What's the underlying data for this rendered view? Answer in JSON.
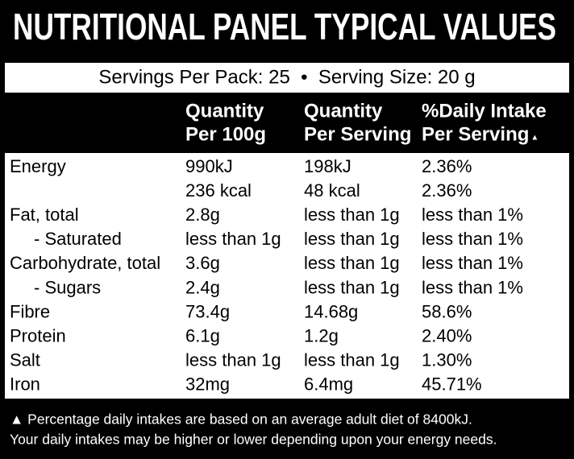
{
  "header": {
    "title": "NUTRITIONAL PANEL TYPICAL VALUES",
    "servings": "Servings Per Pack: 25  •  Serving Size: 20 g"
  },
  "table": {
    "columns": [
      [
        "Quantity",
        "Per 100g"
      ],
      [
        "Quantity",
        "Per Serving"
      ],
      [
        "%Daily Intake",
        "Per Serving"
      ]
    ],
    "marker": "▲",
    "rows": [
      {
        "label": "Energy",
        "cells": [
          "990kJ",
          "198kJ",
          "2.36%"
        ]
      },
      {
        "cells": [
          "236 kcal",
          "48 kcal",
          "2.36%"
        ]
      },
      {
        "label": "Fat, total",
        "cells": [
          "2.8g",
          "less than 1g",
          "less than 1%"
        ]
      },
      {
        "label": "- Saturated",
        "cells": [
          "less than 1g",
          "less than 1g",
          "less than 1%"
        ]
      },
      {
        "label": "Carbohydrate, total",
        "cells": [
          "3.6g",
          "less than 1g",
          "less than 1%"
        ]
      },
      {
        "label": "- Sugars",
        "cells": [
          "2.4g",
          "less than 1g",
          "less than 1%"
        ]
      },
      {
        "label": "Fibre",
        "cells": [
          "73.4g",
          "14.68g",
          "58.6%"
        ]
      },
      {
        "label": "Protein",
        "cells": [
          "6.1g",
          "1.2g",
          "2.40%"
        ]
      },
      {
        "label": "Salt",
        "cells": [
          "less than 1g",
          "less than 1g",
          "1.30%"
        ]
      },
      {
        "label": "Iron",
        "cells": [
          "32mg",
          "6.4mg",
          "45.71%"
        ]
      }
    ]
  },
  "footer": {
    "lines": [
      "▲ Percentage daily intakes are based on an average adult diet of 8400kJ.",
      "Your daily intakes may be higher or lower depending upon your energy needs."
    ]
  }
}
